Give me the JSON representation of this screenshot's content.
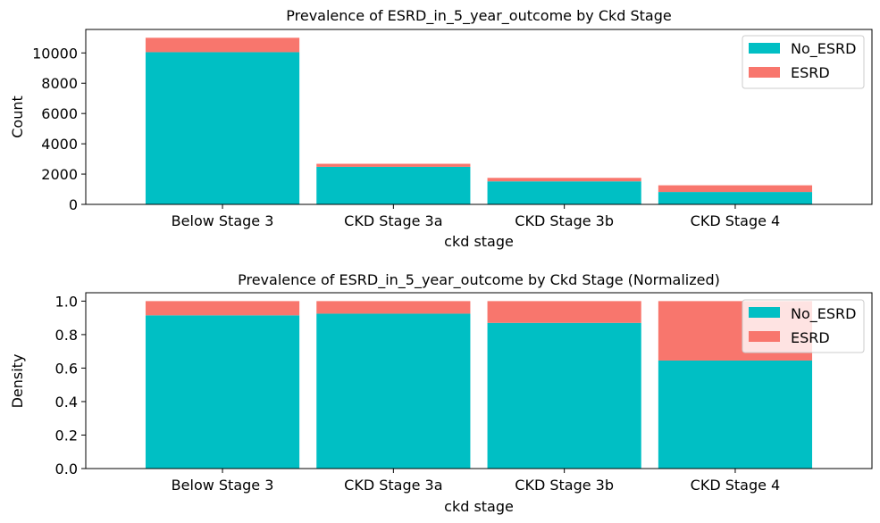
{
  "chart_data": [
    {
      "type": "bar",
      "stacked": true,
      "title": "Prevalence of ESRD_in_5_year_outcome by Ckd Stage",
      "xlabel": "ckd stage",
      "ylabel": "Count",
      "categories": [
        "Below Stage 3",
        "CKD Stage 3a",
        "CKD Stage 3b",
        "CKD Stage 4"
      ],
      "series": [
        {
          "name": "No_ESRD",
          "color": "#00BFC4",
          "values": [
            10050,
            2480,
            1520,
            820
          ]
        },
        {
          "name": "ESRD",
          "color": "#F8766D",
          "values": [
            950,
            200,
            230,
            440
          ]
        }
      ],
      "ylim": [
        0,
        11550
      ],
      "yticks": [
        0,
        2000,
        4000,
        6000,
        8000,
        10000
      ],
      "ytick_labels": [
        "0",
        "2000",
        "4000",
        "6000",
        "8000",
        "10000"
      ],
      "legend": "top-right"
    },
    {
      "type": "bar",
      "stacked": true,
      "title": "Prevalence of ESRD_in_5_year_outcome by Ckd Stage (Normalized)",
      "xlabel": "ckd stage",
      "ylabel": "Density",
      "categories": [
        "Below Stage 3",
        "CKD Stage 3a",
        "CKD Stage 3b",
        "CKD Stage 4"
      ],
      "series": [
        {
          "name": "No_ESRD",
          "color": "#00BFC4",
          "values": [
            0.915,
            0.925,
            0.87,
            0.645
          ]
        },
        {
          "name": "ESRD",
          "color": "#F8766D",
          "values": [
            0.085,
            0.075,
            0.13,
            0.355
          ]
        }
      ],
      "ylim": [
        0,
        1.05
      ],
      "yticks": [
        0,
        0.2,
        0.4,
        0.6,
        0.8,
        1.0
      ],
      "ytick_labels": [
        "0.0",
        "0.2",
        "0.4",
        "0.6",
        "0.8",
        "1.0"
      ],
      "legend": "top-right"
    }
  ]
}
